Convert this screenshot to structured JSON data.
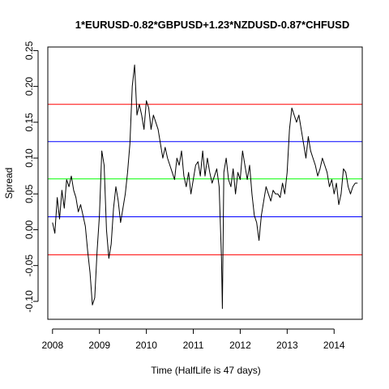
{
  "chart_data": {
    "type": "line",
    "title": "1*EURUSD-0.82*GBPUSD+1.23*NZDUSD-0.87*CHFUSD",
    "xlabel": "Time  (HalfLife is 47 days)",
    "ylabel": "Spread",
    "xlim": [
      2007.9,
      2014.6
    ],
    "ylim": [
      -0.125,
      0.255
    ],
    "grid": false,
    "x_ticks": [
      {
        "value": 2008,
        "label": "2008"
      },
      {
        "value": 2009,
        "label": "2009"
      },
      {
        "value": 2010,
        "label": "2010"
      },
      {
        "value": 2011,
        "label": "2011"
      },
      {
        "value": 2012,
        "label": "2012"
      },
      {
        "value": 2013,
        "label": "2013"
      },
      {
        "value": 2014,
        "label": "2014"
      }
    ],
    "y_ticks": [
      {
        "value": -0.1,
        "label": "-0.10"
      },
      {
        "value": -0.05,
        "label": "-0.05"
      },
      {
        "value": 0.0,
        "label": "0.00"
      },
      {
        "value": 0.05,
        "label": "0.05"
      },
      {
        "value": 0.1,
        "label": "0.10"
      },
      {
        "value": 0.15,
        "label": "0.15"
      },
      {
        "value": 0.2,
        "label": "0.20"
      },
      {
        "value": 0.25,
        "label": "0.25"
      }
    ],
    "hlines": [
      {
        "value": 0.175,
        "color": "#ff0000"
      },
      {
        "value": 0.123,
        "color": "#0000ff"
      },
      {
        "value": 0.071,
        "color": "#00ff00"
      },
      {
        "value": 0.018,
        "color": "#0000ff"
      },
      {
        "value": -0.035,
        "color": "#ff0000"
      }
    ],
    "series": [
      {
        "color": "#000000",
        "x": [
          2008.0,
          2008.05,
          2008.1,
          2008.15,
          2008.2,
          2008.25,
          2008.3,
          2008.35,
          2008.4,
          2008.45,
          2008.5,
          2008.55,
          2008.6,
          2008.65,
          2008.7,
          2008.75,
          2008.8,
          2008.85,
          2008.9,
          2008.95,
          2009.0,
          2009.05,
          2009.1,
          2009.15,
          2009.2,
          2009.25,
          2009.3,
          2009.35,
          2009.4,
          2009.45,
          2009.5,
          2009.55,
          2009.6,
          2009.65,
          2009.7,
          2009.75,
          2009.8,
          2009.85,
          2009.9,
          2009.95,
          2010.0,
          2010.05,
          2010.1,
          2010.15,
          2010.2,
          2010.25,
          2010.3,
          2010.35,
          2010.4,
          2010.45,
          2010.5,
          2010.55,
          2010.6,
          2010.65,
          2010.7,
          2010.75,
          2010.8,
          2010.85,
          2010.9,
          2010.95,
          2011.0,
          2011.05,
          2011.1,
          2011.15,
          2011.2,
          2011.25,
          2011.3,
          2011.35,
          2011.4,
          2011.45,
          2011.5,
          2011.55,
          2011.6,
          2011.62,
          2011.65,
          2011.7,
          2011.75,
          2011.8,
          2011.85,
          2011.9,
          2011.95,
          2012.0,
          2012.05,
          2012.1,
          2012.15,
          2012.2,
          2012.25,
          2012.3,
          2012.35,
          2012.4,
          2012.45,
          2012.5,
          2012.55,
          2012.6,
          2012.65,
          2012.7,
          2012.75,
          2012.8,
          2012.85,
          2012.9,
          2012.95,
          2013.0,
          2013.05,
          2013.1,
          2013.15,
          2013.2,
          2013.25,
          2013.3,
          2013.35,
          2013.4,
          2013.45,
          2013.5,
          2013.55,
          2013.6,
          2013.65,
          2013.7,
          2013.75,
          2013.8,
          2013.85,
          2013.9,
          2013.95,
          2014.0,
          2014.05,
          2014.1,
          2014.15,
          2014.2,
          2014.25,
          2014.3,
          2014.35,
          2014.4,
          2014.45,
          2014.5
        ],
        "values": [
          0.01,
          -0.005,
          0.045,
          0.015,
          0.055,
          0.03,
          0.07,
          0.06,
          0.075,
          0.055,
          0.045,
          0.025,
          0.035,
          0.02,
          0.005,
          -0.03,
          -0.06,
          -0.105,
          -0.095,
          -0.03,
          0.02,
          0.11,
          0.09,
          0.0,
          -0.04,
          -0.02,
          0.03,
          0.06,
          0.04,
          0.01,
          0.03,
          0.05,
          0.08,
          0.12,
          0.2,
          0.23,
          0.16,
          0.175,
          0.16,
          0.14,
          0.18,
          0.17,
          0.14,
          0.16,
          0.15,
          0.14,
          0.12,
          0.1,
          0.115,
          0.1,
          0.09,
          0.08,
          0.07,
          0.1,
          0.09,
          0.11,
          0.075,
          0.06,
          0.08,
          0.05,
          0.07,
          0.09,
          0.095,
          0.075,
          0.11,
          0.075,
          0.1,
          0.08,
          0.065,
          0.075,
          0.085,
          0.06,
          -0.04,
          -0.11,
          0.08,
          0.1,
          0.07,
          0.06,
          0.085,
          0.05,
          0.08,
          0.07,
          0.11,
          0.09,
          0.07,
          0.09,
          0.05,
          0.02,
          0.01,
          -0.015,
          0.02,
          0.04,
          0.06,
          0.05,
          0.04,
          0.055,
          0.05,
          0.05,
          0.045,
          0.065,
          0.05,
          0.08,
          0.14,
          0.17,
          0.16,
          0.15,
          0.16,
          0.14,
          0.12,
          0.1,
          0.13,
          0.11,
          0.1,
          0.09,
          0.075,
          0.085,
          0.1,
          0.09,
          0.08,
          0.06,
          0.07,
          0.05,
          0.065,
          0.035,
          0.05,
          0.085,
          0.08,
          0.06,
          0.05,
          0.06,
          0.065,
          0.065
        ]
      }
    ]
  }
}
